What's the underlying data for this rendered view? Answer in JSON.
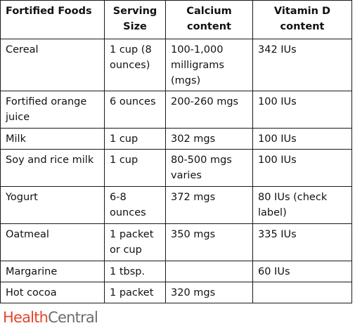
{
  "table": {
    "headers": [
      "Fortified Foods",
      "Serving Size",
      "Calcium content",
      "Vitamin D content"
    ],
    "rows": [
      [
        "Cereal",
        "1 cup (8 ounces)",
        "100-1,000 milligrams (mgs)",
        "342 IUs"
      ],
      [
        "Fortified orange juice",
        "6 ounces",
        "200-260 mgs",
        "100 IUs"
      ],
      [
        "Milk",
        "1 cup",
        "302 mgs",
        "100 IUs"
      ],
      [
        "Soy and rice milk",
        "1 cup",
        "80-500 mgs varies",
        "100 IUs"
      ],
      [
        "Yogurt",
        "6-8 ounces",
        "372 mgs",
        "80 IUs (check label)"
      ],
      [
        "Oatmeal",
        "1 packet or cup",
        "350 mgs",
        "335 IUs"
      ],
      [
        "Margarine",
        "1 tbsp.",
        "",
        "60 IUs"
      ],
      [
        "Hot cocoa",
        "1 packet",
        "320 mgs",
        ""
      ]
    ]
  },
  "logo": {
    "part1": "Health",
    "part2": "Central",
    "colors": {
      "part1": "#e4452b",
      "part2": "#6d6d6d"
    }
  }
}
